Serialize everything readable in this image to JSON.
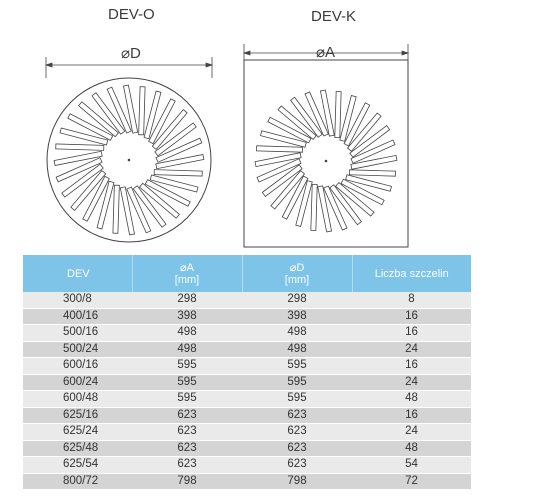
{
  "drawings": {
    "left": {
      "title": "DEV-O",
      "dimension_label": "⌀D"
    },
    "right": {
      "title": "DEV-K",
      "dimension_label": "⌀A"
    }
  },
  "table": {
    "headers": [
      {
        "line1": "DEV",
        "line2": ""
      },
      {
        "line1": "⌀A",
        "line2": "[mm]"
      },
      {
        "line1": "⌀D",
        "line2": "[mm]"
      },
      {
        "line1": "Liczba szczelin",
        "line2": ""
      }
    ],
    "rows": [
      [
        "300/8",
        "298",
        "298",
        "8"
      ],
      [
        "400/16",
        "398",
        "398",
        "16"
      ],
      [
        "500/16",
        "498",
        "498",
        "16"
      ],
      [
        "500/24",
        "498",
        "498",
        "24"
      ],
      [
        "600/16",
        "595",
        "595",
        "16"
      ],
      [
        "600/24",
        "595",
        "595",
        "24"
      ],
      [
        "600/48",
        "595",
        "595",
        "48"
      ],
      [
        "625/16",
        "623",
        "623",
        "16"
      ],
      [
        "625/24",
        "623",
        "623",
        "24"
      ],
      [
        "625/48",
        "623",
        "623",
        "48"
      ],
      [
        "625/54",
        "623",
        "623",
        "54"
      ],
      [
        "800/72",
        "798",
        "798",
        "72"
      ]
    ]
  },
  "colors": {
    "header_bg": "#7ec3e8",
    "row_light": "#eaeaea",
    "row_dark": "#d4d4d4",
    "line": "#444444"
  }
}
